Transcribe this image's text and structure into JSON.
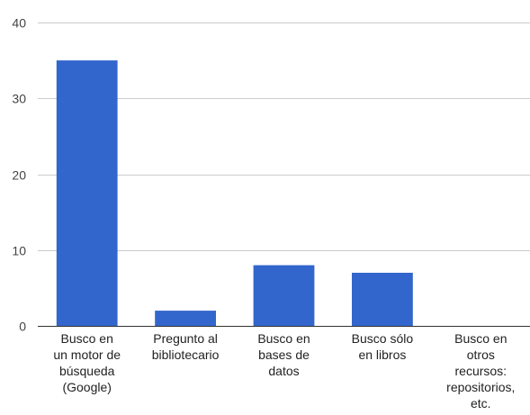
{
  "chart_data": {
    "type": "bar",
    "title": "",
    "xlabel": "",
    "ylabel": "",
    "ylim": [
      0,
      40
    ],
    "yticks": [
      0,
      10,
      20,
      30,
      40
    ],
    "grid": true,
    "legend": "none",
    "bar_color": "#3366cc",
    "grid_color": "#cccccc",
    "categories": [
      "Busco en un motor de búsqueda (Google)",
      "Pregunto al bibliotecario",
      "Busco en bases de datos",
      "Busco sólo en libros",
      "Busco en otros recursos: repositorios, etc."
    ],
    "category_lines": [
      [
        "Busco en",
        "un motor de",
        "búsqueda",
        "(Google)"
      ],
      [
        "Pregunto al",
        "bibliotecario"
      ],
      [
        "Busco en",
        "bases de",
        "datos"
      ],
      [
        "Busco sólo",
        "en libros"
      ],
      [
        "Busco en",
        "otros",
        "recursos:",
        "repositorios,",
        "etc."
      ]
    ],
    "values": [
      35,
      2,
      8,
      7,
      0
    ]
  }
}
